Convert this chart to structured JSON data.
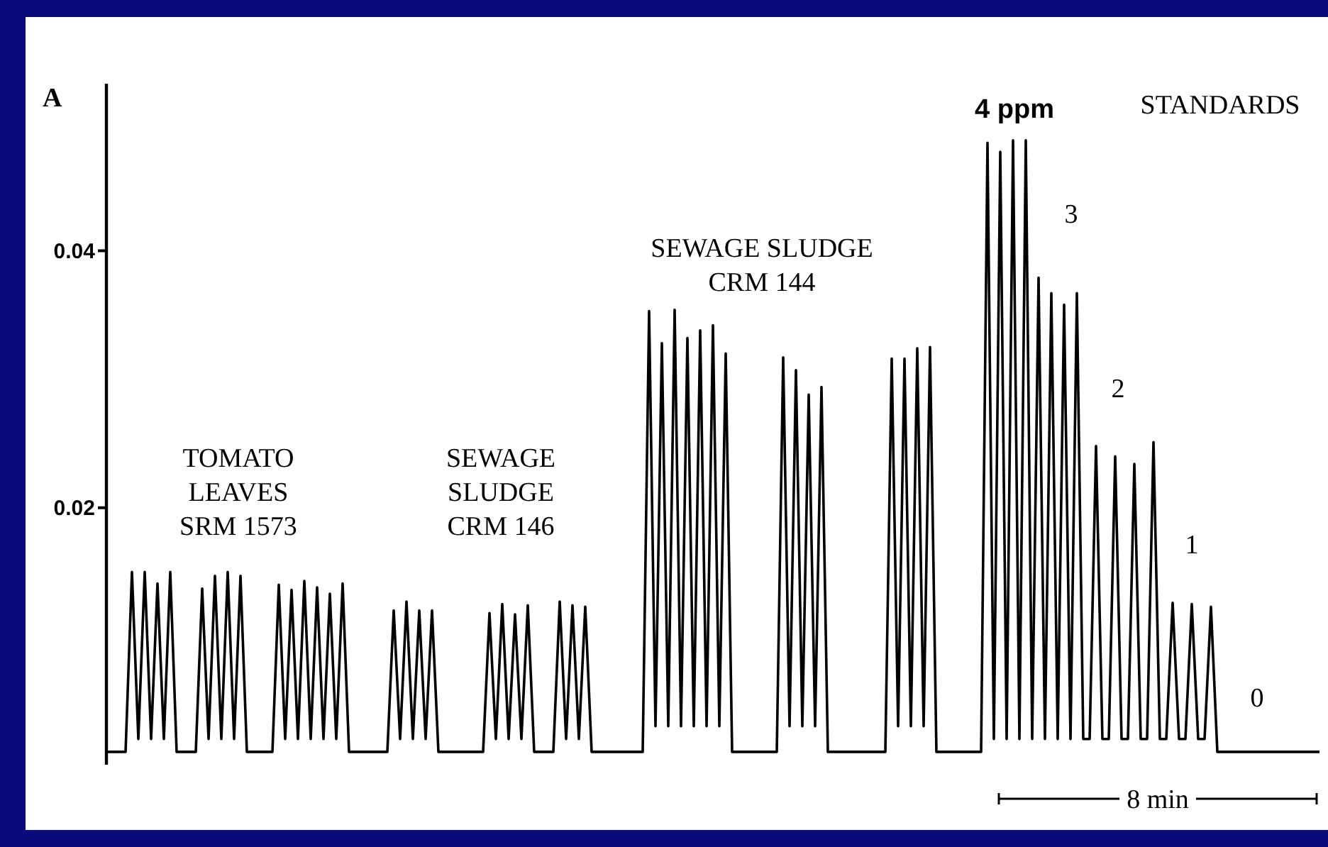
{
  "chart_data": {
    "type": "line",
    "categories": [
      null,
      null,
      null,
      null,
      null,
      null,
      null,
      null,
      null,
      null,
      null,
      null,
      null,
      null,
      null,
      null,
      null,
      null,
      null,
      null,
      null,
      null,
      null,
      null,
      null,
      null,
      null,
      null,
      null,
      null,
      null,
      null,
      null,
      null,
      null,
      null,
      null,
      null,
      null,
      null,
      null,
      null,
      null,
      null,
      null,
      null,
      null,
      null,
      null,
      null,
      null,
      null,
      null,
      null,
      null,
      null,
      null,
      null,
      null,
      null,
      null,
      null,
      null,
      null,
      null,
      null,
      null,
      null,
      null,
      null,
      null,
      null,
      null,
      null,
      null,
      null,
      null,
      null,
      null,
      null,
      null,
      null,
      null,
      null,
      null,
      null,
      null,
      null,
      null,
      null,
      null,
      null,
      null,
      null,
      null,
      null,
      null,
      null,
      null,
      null,
      null,
      null,
      null,
      null,
      null,
      null,
      null,
      null,
      null,
      null,
      null,
      null,
      null,
      null,
      null,
      null,
      null,
      null,
      null,
      null,
      null,
      null,
      null,
      null,
      null,
      null,
      null,
      null,
      null,
      null,
      null,
      null,
      null,
      null,
      null,
      null,
      null,
      null,
      null,
      null,
      null,
      null,
      null,
      null,
      null,
      null,
      null,
      null,
      null,
      null,
      null,
      null,
      null,
      null,
      null,
      null,
      null,
      null,
      null,
      null,
      null,
      null,
      null,
      null,
      null,
      null,
      null,
      null,
      null,
      null,
      null,
      null,
      null,
      null,
      null,
      null,
      null,
      null,
      null,
      null,
      null,
      null,
      null,
      null,
      null,
      null,
      null,
      null,
      null,
      null,
      null
    ],
    "series": [
      {
        "color": "#000000",
        "values": [
          0.001,
          0.001,
          0.001,
          0.001,
          0.015,
          0.002,
          0.015,
          0.002,
          0.0141,
          0.002,
          0.015,
          0.001,
          0.001,
          0.001,
          0.001,
          0.0137,
          0.002,
          0.0147,
          0.002,
          0.015,
          0.002,
          0.0147,
          0.001,
          0.001,
          0.001,
          0.001,
          0.001,
          0.014,
          0.002,
          0.0136,
          0.002,
          0.0143,
          0.002,
          0.0138,
          0.002,
          0.0133,
          0.002,
          0.0141,
          0.001,
          0.001,
          0.001,
          0.001,
          0.001,
          0.001,
          0.001,
          0.012,
          0.002,
          0.0127,
          0.002,
          0.012,
          0.002,
          0.012,
          0.001,
          0.001,
          0.001,
          0.001,
          0.001,
          0.001,
          0.001,
          0.001,
          0.0118,
          0.002,
          0.0125,
          0.002,
          0.0117,
          0.002,
          0.0124,
          0.001,
          0.001,
          0.001,
          0.001,
          0.0127,
          0.002,
          0.0124,
          0.002,
          0.0123,
          0.001,
          0.001,
          0.001,
          0.001,
          0.001,
          0.001,
          0.001,
          0.001,
          0.001,
          0.0353,
          0.003,
          0.0328,
          0.003,
          0.0354,
          0.003,
          0.0332,
          0.003,
          0.0338,
          0.003,
          0.0342,
          0.003,
          0.032,
          0.001,
          0.001,
          0.001,
          0.001,
          0.001,
          0.001,
          0.001,
          0.001,
          0.0317,
          0.003,
          0.0307,
          0.003,
          0.0288,
          0.003,
          0.0294,
          0.001,
          0.001,
          0.001,
          0.001,
          0.001,
          0.001,
          0.001,
          0.001,
          0.001,
          0.001,
          0.0316,
          0.003,
          0.0316,
          0.003,
          0.0324,
          0.003,
          0.0325,
          0.001,
          0.001,
          0.001,
          0.001,
          0.001,
          0.001,
          0.001,
          0.001,
          0.0484,
          0.002,
          0.0477,
          0.002,
          0.0486,
          0.002,
          0.0486,
          0.002,
          0.0379,
          0.002,
          0.0367,
          0.002,
          0.0358,
          0.002,
          0.0367,
          0.002,
          0.002,
          0.0248,
          0.002,
          0.002,
          0.024,
          0.002,
          0.002,
          0.0234,
          0.002,
          0.002,
          0.0251,
          0.002,
          0.002,
          0.0126,
          0.002,
          0.002,
          0.0125,
          0.002,
          0.002,
          0.0123,
          0.001,
          0.001,
          0.001,
          0.001,
          0.001,
          0.001,
          0.001,
          0.001,
          0.001,
          0.001,
          0.001,
          0.001,
          0.001,
          0.001,
          0.001,
          0.001,
          0.001
        ]
      }
    ],
    "ylim": [
      0,
      0.053
    ],
    "yticks": [
      0.02,
      0.04
    ],
    "annotations": [
      "A",
      "8 min",
      "STANDARDS",
      "TOMATO\nLEAVES\nSRM 1573",
      "SEWAGE\nSLUDGE\nCRM 146",
      "SEWAGE SLUDGE\nCRM 144",
      "4 ppm",
      "3",
      "2",
      "1",
      "0"
    ]
  }
}
